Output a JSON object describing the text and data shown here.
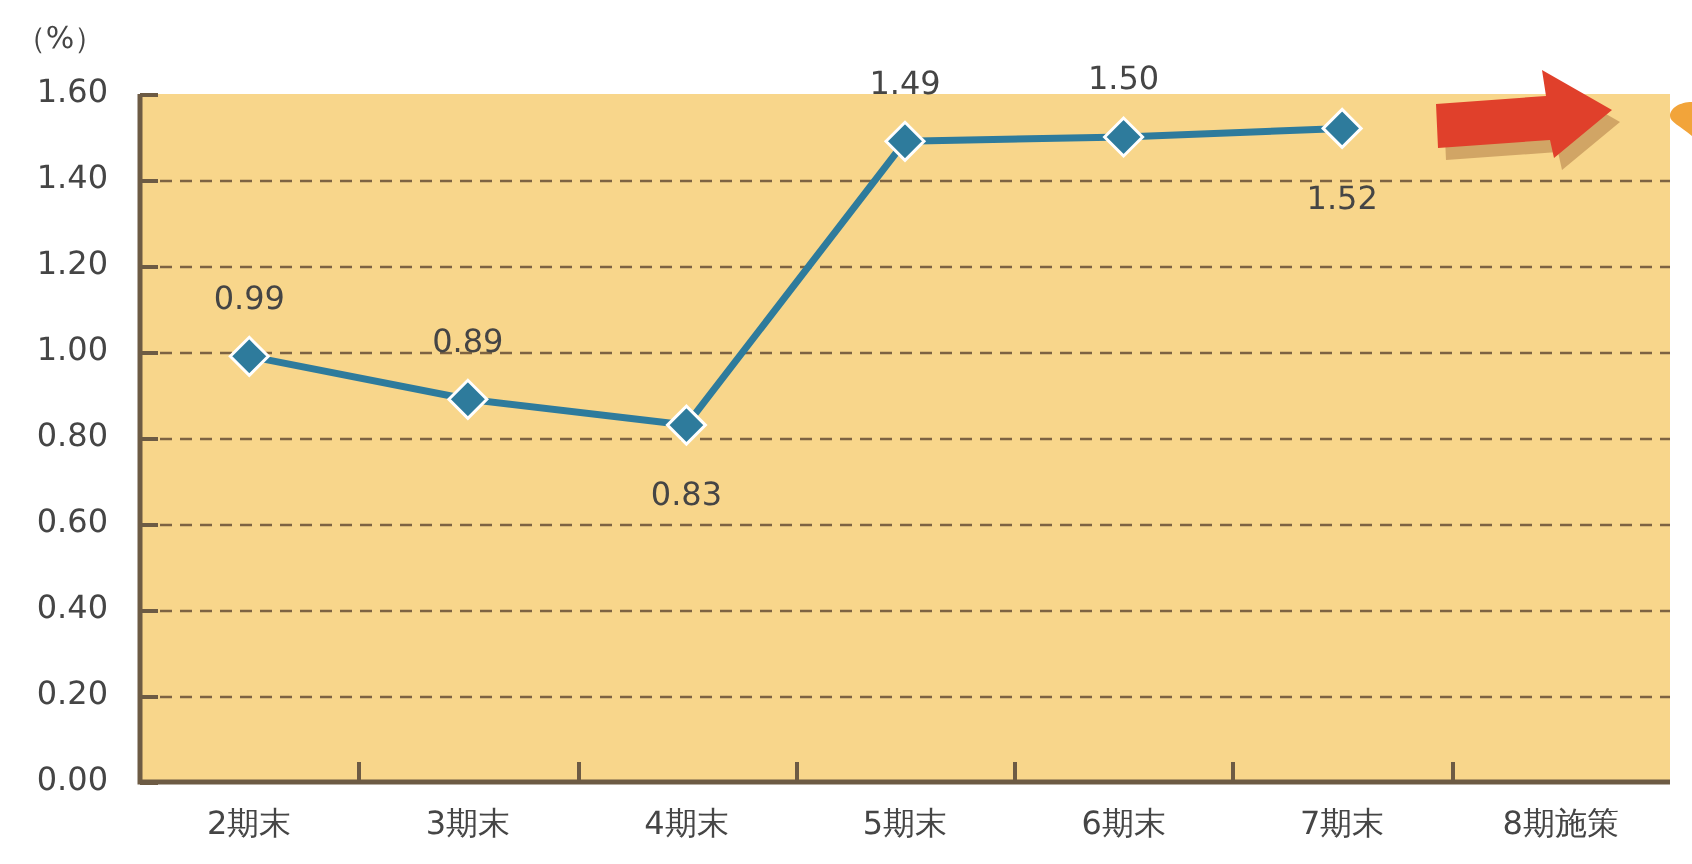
{
  "chart_data": {
    "type": "line",
    "ylabel": "（%）",
    "categories": [
      "2期末",
      "3期末",
      "4期末",
      "5期末",
      "6期末",
      "7期末",
      "8期施策"
    ],
    "series": [
      {
        "color": "#2e7b9c",
        "values": [
          0.99,
          0.89,
          0.83,
          1.49,
          1.5,
          1.52,
          null
        ],
        "value_labels": [
          "0.99",
          "0.89",
          "0.83",
          "1.49",
          "1.50",
          "1.52",
          null
        ]
      }
    ],
    "ylim": [
      0,
      1.6
    ],
    "yticks": [
      {
        "value": 0,
        "label": "0.00"
      },
      {
        "value": 0.2,
        "label": "0.20"
      },
      {
        "value": 0.4,
        "label": "0.40"
      },
      {
        "value": 0.6,
        "label": "0.60"
      },
      {
        "value": 0.8,
        "label": "0.80"
      },
      {
        "value": 1,
        "label": "1.00"
      },
      {
        "value": 1.2,
        "label": "1.20"
      },
      {
        "value": 1.4,
        "label": "1.40"
      },
      {
        "value": 1.6,
        "label": "1.60"
      }
    ],
    "grid": "y",
    "legend": false,
    "marker": "diamond"
  }
}
